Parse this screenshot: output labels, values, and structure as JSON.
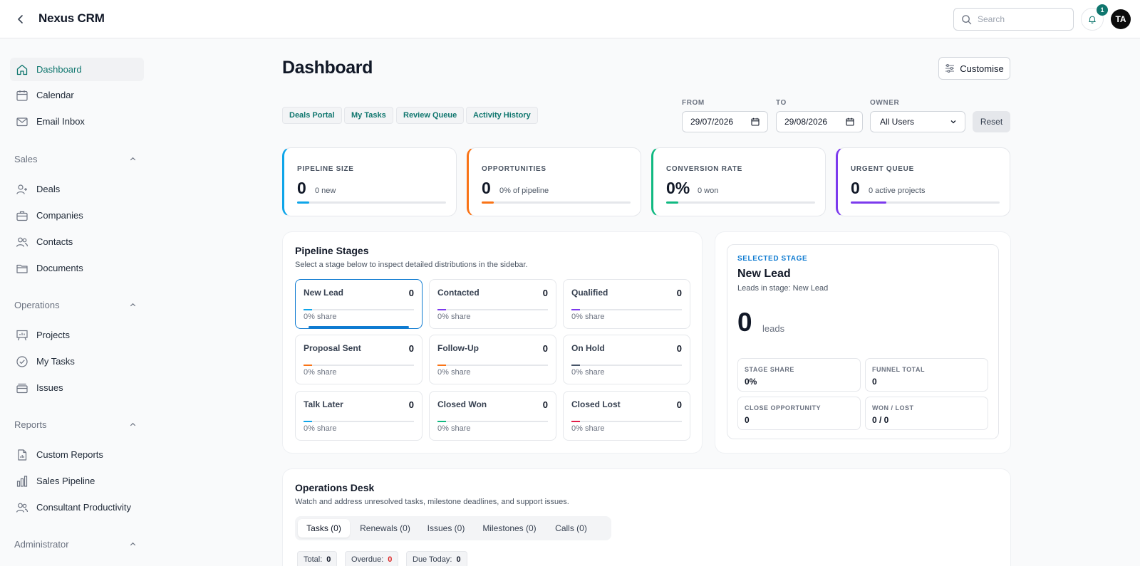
{
  "app": {
    "title": "Nexus CRM"
  },
  "header": {
    "search_placeholder": "Search",
    "notification_count": "1",
    "avatar_initials": "TA"
  },
  "sidebar": {
    "top_items": [
      {
        "label": "Dashboard",
        "icon": "home-icon",
        "active": true
      },
      {
        "label": "Calendar",
        "icon": "calendar-icon"
      },
      {
        "label": "Email Inbox",
        "icon": "mail-icon"
      }
    ],
    "sections": [
      {
        "label": "Sales",
        "items": [
          {
            "label": "Deals",
            "icon": "user-plus-icon"
          },
          {
            "label": "Companies",
            "icon": "briefcase-icon"
          },
          {
            "label": "Contacts",
            "icon": "users-icon"
          },
          {
            "label": "Documents",
            "icon": "folder-icon"
          }
        ]
      },
      {
        "label": "Operations",
        "items": [
          {
            "label": "Projects",
            "icon": "presentation-icon"
          },
          {
            "label": "My Tasks",
            "icon": "check-circle-icon"
          },
          {
            "label": "Issues",
            "icon": "inbox-stack-icon"
          }
        ]
      },
      {
        "label": "Reports",
        "items": [
          {
            "label": "Custom Reports",
            "icon": "file-chart-icon"
          },
          {
            "label": "Sales Pipeline",
            "icon": "bar-chart-icon"
          },
          {
            "label": "Consultant Productivity",
            "icon": "users-icon"
          }
        ]
      },
      {
        "label": "Administrator",
        "items": []
      }
    ]
  },
  "main": {
    "title": "Dashboard",
    "customise_label": "Customise",
    "quick_links": [
      "Deals Portal",
      "My Tasks",
      "Review Queue",
      "Activity History"
    ],
    "filters": {
      "from_label": "FROM",
      "from_value": "29/07/2026",
      "to_label": "TO",
      "to_value": "29/08/2026",
      "owner_label": "OWNER",
      "owner_value": "All Users",
      "reset_label": "Reset"
    },
    "kpis": [
      {
        "label": "PIPELINE SIZE",
        "value": "0",
        "sub": "0 new",
        "color": "#0ea5e9",
        "fill": 0.08
      },
      {
        "label": "OPPORTUNITIES",
        "value": "0",
        "sub": "0% of pipeline",
        "color": "#f97316",
        "fill": 0.08
      },
      {
        "label": "CONVERSION RATE",
        "value": "0%",
        "sub": "0 won",
        "color": "#10b981",
        "fill": 0.08
      },
      {
        "label": "URGENT QUEUE",
        "value": "0",
        "sub": "0 active projects",
        "color": "#7c3aed",
        "fill": 0.24
      }
    ],
    "pipeline": {
      "title": "Pipeline Stages",
      "subtitle": "Select a stage below to inspect detailed distributions in the sidebar.",
      "stages": [
        {
          "name": "New Lead",
          "count": "0",
          "share": "0% share",
          "color": "#0ea5e9",
          "selected": true
        },
        {
          "name": "Contacted",
          "count": "0",
          "share": "0% share",
          "color": "#7c3aed"
        },
        {
          "name": "Qualified",
          "count": "0",
          "share": "0% share",
          "color": "#7c3aed"
        },
        {
          "name": "Proposal Sent",
          "count": "0",
          "share": "0% share",
          "color": "#f97316"
        },
        {
          "name": "Follow-Up",
          "count": "0",
          "share": "0% share",
          "color": "#f97316"
        },
        {
          "name": "On Hold",
          "count": "0",
          "share": "0% share",
          "color": "#475569"
        },
        {
          "name": "Talk Later",
          "count": "0",
          "share": "0% share",
          "color": "#0ea5e9"
        },
        {
          "name": "Closed Won",
          "count": "0",
          "share": "0% share",
          "color": "#10b981"
        },
        {
          "name": "Closed Lost",
          "count": "0",
          "share": "0% share",
          "color": "#e11d48"
        }
      ]
    },
    "selected_stage": {
      "eyebrow": "SELECTED STAGE",
      "name": "New Lead",
      "description": "Leads in stage: New Lead",
      "count": "0",
      "count_unit": "leads",
      "metrics": [
        {
          "label": "STAGE SHARE",
          "value": "0%"
        },
        {
          "label": "FUNNEL TOTAL",
          "value": "0"
        },
        {
          "label": "CLOSE OPPORTUNITY",
          "value": "0"
        },
        {
          "label": "WON / LOST",
          "value": "0 / 0"
        }
      ]
    },
    "operations": {
      "title": "Operations Desk",
      "subtitle": "Watch and address unresolved tasks, milestone deadlines, and support issues.",
      "tabs": [
        "Tasks (0)",
        "Renewals (0)",
        "Issues (0)",
        "Milestones (0)",
        "Calls (0)"
      ],
      "stats": [
        {
          "label": "Total:",
          "value": "0"
        },
        {
          "label": "Overdue:",
          "value": "0"
        },
        {
          "label": "Due Today:",
          "value": "0"
        }
      ]
    }
  }
}
